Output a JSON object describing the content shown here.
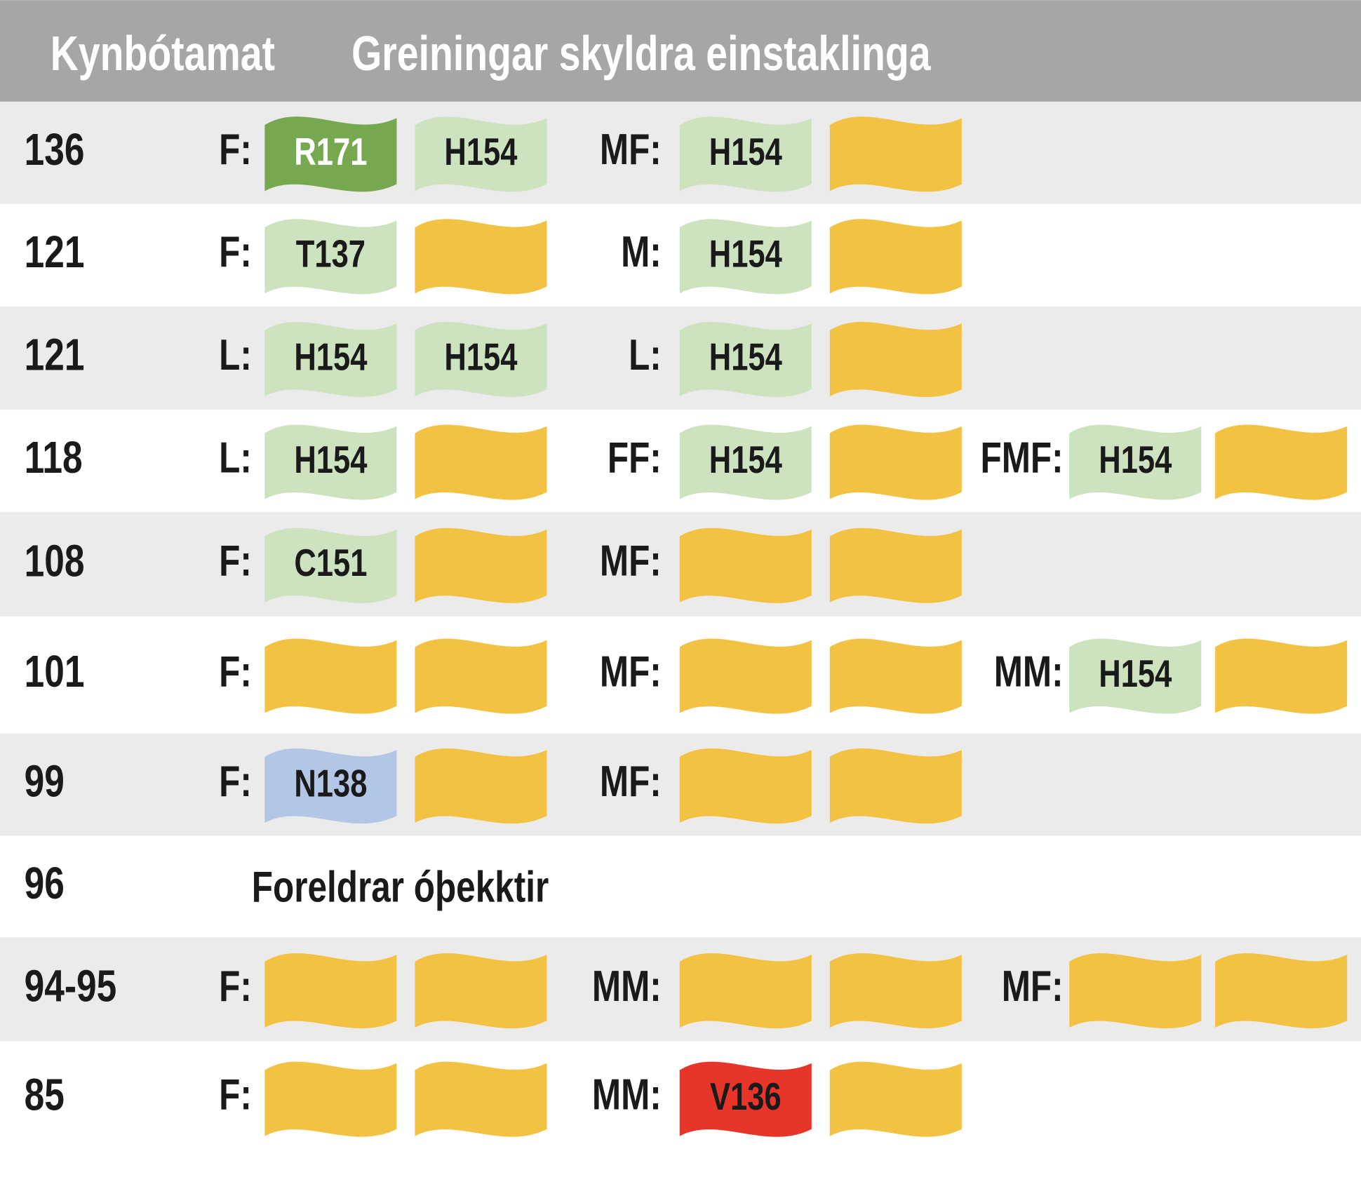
{
  "header": {
    "score_title": "Kynbótamat",
    "analysis_title": "Greiningar skyldra einstaklinga"
  },
  "rows": [
    {
      "score": "136",
      "groups": [
        {
          "label": "F:",
          "flags": [
            {
              "text": "R171",
              "color": "#76a84f",
              "text_color": "#ffffff"
            },
            {
              "text": "H154",
              "color": "#cde3bf"
            }
          ]
        },
        {
          "label": "MF:",
          "flags": [
            {
              "text": "H154",
              "color": "#cde3bf"
            },
            {
              "color": "#f4c242"
            }
          ]
        }
      ]
    },
    {
      "score": "121",
      "groups": [
        {
          "label": "F:",
          "flags": [
            {
              "text": "T137",
              "color": "#cde3bf"
            },
            {
              "color": "#f4c242"
            }
          ]
        },
        {
          "label": "M:",
          "flags": [
            {
              "text": "H154",
              "color": "#cde3bf"
            },
            {
              "color": "#f4c242"
            }
          ]
        }
      ]
    },
    {
      "score": "121",
      "groups": [
        {
          "label": "L:",
          "flags": [
            {
              "text": "H154",
              "color": "#cde3bf"
            },
            {
              "text": "H154",
              "color": "#cde3bf"
            }
          ]
        },
        {
          "label": "L:",
          "flags": [
            {
              "text": "H154",
              "color": "#cde3bf"
            },
            {
              "color": "#f4c242"
            }
          ]
        }
      ]
    },
    {
      "score": "118",
      "groups": [
        {
          "label": "L:",
          "flags": [
            {
              "text": "H154",
              "color": "#cde3bf"
            },
            {
              "color": "#f4c242"
            }
          ]
        },
        {
          "label": "FF:",
          "flags": [
            {
              "text": "H154",
              "color": "#cde3bf"
            },
            {
              "color": "#f4c242"
            }
          ]
        },
        {
          "label": "FMF:",
          "flags": [
            {
              "text": "H154",
              "color": "#cde3bf"
            },
            {
              "color": "#f4c242"
            }
          ]
        }
      ]
    },
    {
      "score": "108",
      "groups": [
        {
          "label": "F:",
          "flags": [
            {
              "text": "C151",
              "color": "#cde3bf"
            },
            {
              "color": "#f4c242"
            }
          ]
        },
        {
          "label": "MF:",
          "flags": [
            {
              "color": "#f4c242"
            },
            {
              "color": "#f4c242"
            }
          ]
        }
      ]
    },
    {
      "score": "101",
      "groups": [
        {
          "label": "F:",
          "flags": [
            {
              "color": "#f4c242"
            },
            {
              "color": "#f4c242"
            }
          ]
        },
        {
          "label": "MF:",
          "flags": [
            {
              "color": "#f4c242"
            },
            {
              "color": "#f4c242"
            }
          ]
        },
        {
          "label": "MM:",
          "flags": [
            {
              "text": "H154",
              "color": "#cde3bf"
            },
            {
              "color": "#f4c242"
            }
          ]
        }
      ]
    },
    {
      "score": "99",
      "groups": [
        {
          "label": "F:",
          "flags": [
            {
              "text": "N138",
              "color": "#b4c6e5"
            },
            {
              "color": "#f4c242"
            }
          ]
        },
        {
          "label": "MF:",
          "flags": [
            {
              "color": "#f4c242"
            },
            {
              "color": "#f4c242"
            }
          ]
        }
      ]
    },
    {
      "score": "96",
      "note": "Foreldrar óþekktir"
    },
    {
      "score": "94-95",
      "groups": [
        {
          "label": "F:",
          "flags": [
            {
              "color": "#f4c242"
            },
            {
              "color": "#f4c242"
            }
          ]
        },
        {
          "label": "MM:",
          "flags": [
            {
              "color": "#f4c242"
            },
            {
              "color": "#f4c242"
            }
          ]
        },
        {
          "label": "MF:",
          "flags": [
            {
              "color": "#f4c242"
            },
            {
              "color": "#f4c242"
            }
          ]
        }
      ]
    },
    {
      "score": "85",
      "groups": [
        {
          "label": "F:",
          "flags": [
            {
              "color": "#f4c242"
            },
            {
              "color": "#f4c242"
            }
          ]
        },
        {
          "label": "MM:",
          "flags": [
            {
              "text": "V136",
              "color": "#e8352a"
            },
            {
              "color": "#f4c242"
            }
          ]
        }
      ]
    }
  ]
}
